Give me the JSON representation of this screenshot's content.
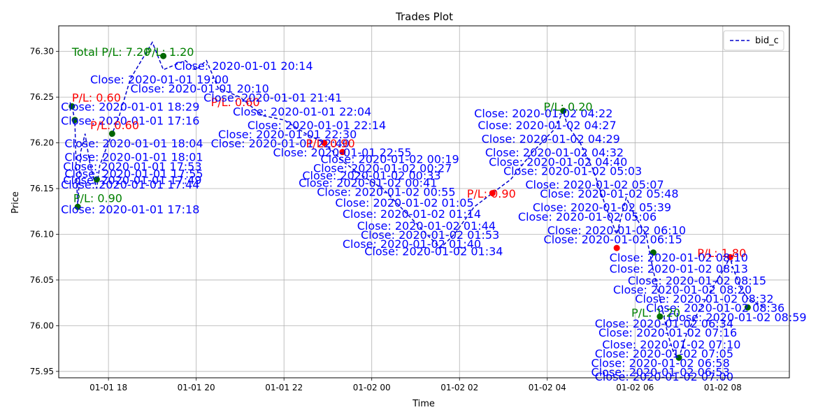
{
  "chart_data": {
    "type": "line",
    "title": "Trades Plot",
    "xlabel": "Time",
    "ylabel": "Price",
    "x_axis": "time",
    "xlim": [
      "2020-01-01 16:52",
      "2020-01-02 09:31"
    ],
    "ylim": [
      75.943,
      76.328
    ],
    "grid": true,
    "legend_position": "top-right",
    "x_ticks": [
      {
        "t": "2020-01-01 18:00",
        "label": "01-01 18"
      },
      {
        "t": "2020-01-01 20:00",
        "label": "01-01 20"
      },
      {
        "t": "2020-01-01 22:00",
        "label": "01-01 22"
      },
      {
        "t": "2020-01-02 00:00",
        "label": "01-02 00"
      },
      {
        "t": "2020-01-02 02:00",
        "label": "01-02 02"
      },
      {
        "t": "2020-01-02 04:00",
        "label": "01-02 04"
      },
      {
        "t": "2020-01-02 06:00",
        "label": "01-02 06"
      },
      {
        "t": "2020-01-02 08:00",
        "label": "01-02 08"
      }
    ],
    "y_ticks": [
      {
        "v": 75.95,
        "label": "75.95"
      },
      {
        "v": 76.0,
        "label": "76.00"
      },
      {
        "v": 76.05,
        "label": "76.05"
      },
      {
        "v": 76.1,
        "label": "76.10"
      },
      {
        "v": 76.15,
        "label": "76.15"
      },
      {
        "v": 76.2,
        "label": "76.20"
      },
      {
        "v": 76.25,
        "label": "76.25"
      },
      {
        "v": 76.3,
        "label": "76.30"
      }
    ],
    "series": [
      {
        "name": "bid_c",
        "style": "dashed",
        "color": "#0000cc",
        "points": [
          [
            "2020-01-01 17:10",
            76.24
          ],
          [
            "2020-01-01 17:14",
            76.225
          ],
          [
            "2020-01-01 17:16",
            76.17
          ],
          [
            "2020-01-01 17:18",
            76.13
          ],
          [
            "2020-01-01 17:22",
            76.19
          ],
          [
            "2020-01-01 17:28",
            76.21
          ],
          [
            "2020-01-01 17:34",
            76.18
          ],
          [
            "2020-01-01 17:40",
            76.16
          ],
          [
            "2020-01-01 17:44",
            76.15
          ],
          [
            "2020-01-01 17:48",
            76.175
          ],
          [
            "2020-01-01 17:55",
            76.19
          ],
          [
            "2020-01-01 18:05",
            76.21
          ],
          [
            "2020-01-01 18:15",
            76.23
          ],
          [
            "2020-01-01 18:30",
            76.27
          ],
          [
            "2020-01-01 18:45",
            76.29
          ],
          [
            "2020-01-01 19:00",
            76.31
          ],
          [
            "2020-01-01 19:15",
            76.28
          ],
          [
            "2020-01-01 19:30",
            76.285
          ],
          [
            "2020-01-01 19:45",
            76.29
          ],
          [
            "2020-01-01 20:00",
            76.28
          ],
          [
            "2020-01-01 20:14",
            76.29
          ],
          [
            "2020-01-01 20:30",
            76.26
          ],
          [
            "2020-01-01 21:00",
            76.25
          ],
          [
            "2020-01-01 21:30",
            76.23
          ],
          [
            "2020-01-01 22:00",
            76.225
          ],
          [
            "2020-01-01 22:30",
            76.21
          ],
          [
            "2020-01-01 22:55",
            76.2
          ],
          [
            "2020-01-01 23:20",
            76.18
          ],
          [
            "2020-01-01 23:45",
            76.165
          ],
          [
            "2020-01-02 00:15",
            76.15
          ],
          [
            "2020-01-02 00:45",
            76.125
          ],
          [
            "2020-01-02 01:15",
            76.1
          ],
          [
            "2020-01-02 01:34",
            76.085
          ],
          [
            "2020-01-02 01:53",
            76.1
          ],
          [
            "2020-01-02 02:20",
            76.13
          ],
          [
            "2020-01-02 02:45",
            76.145
          ],
          [
            "2020-01-02 03:10",
            76.16
          ],
          [
            "2020-01-02 03:40",
            76.19
          ],
          [
            "2020-01-02 04:10",
            76.215
          ],
          [
            "2020-01-02 04:22",
            76.235
          ],
          [
            "2020-01-02 04:27",
            76.22
          ],
          [
            "2020-01-02 04:45",
            76.2
          ],
          [
            "2020-01-02 05:03",
            76.17
          ],
          [
            "2020-01-02 05:20",
            76.13
          ],
          [
            "2020-01-02 05:35",
            76.1
          ],
          [
            "2020-01-02 05:48",
            76.14
          ],
          [
            "2020-01-02 06:00",
            76.12
          ],
          [
            "2020-01-02 06:15",
            76.1
          ],
          [
            "2020-01-02 06:25",
            76.06
          ],
          [
            "2020-01-02 06:34",
            76.03
          ],
          [
            "2020-01-02 06:45",
            75.99
          ],
          [
            "2020-01-02 06:53",
            75.97
          ],
          [
            "2020-01-02 07:00",
            75.965
          ],
          [
            "2020-01-02 07:10",
            75.99
          ],
          [
            "2020-01-02 07:16",
            76.0
          ],
          [
            "2020-01-02 07:30",
            76.02
          ],
          [
            "2020-01-02 07:45",
            76.04
          ],
          [
            "2020-01-02 08:00",
            76.06
          ],
          [
            "2020-01-02 08:10",
            76.075
          ],
          [
            "2020-01-02 08:13",
            76.065
          ],
          [
            "2020-01-02 08:25",
            76.04
          ],
          [
            "2020-01-02 08:34",
            76.03
          ],
          [
            "2020-01-02 08:45",
            76.025
          ],
          [
            "2020-01-02 08:59",
            76.02
          ]
        ]
      }
    ],
    "trade_markers": [
      {
        "t": "2020-01-01 17:10",
        "v": 76.24,
        "color": "#006400"
      },
      {
        "t": "2020-01-01 17:14",
        "v": 76.225,
        "color": "#006400"
      },
      {
        "t": "2020-01-01 17:18",
        "v": 76.13,
        "color": "#006400"
      },
      {
        "t": "2020-01-01 17:44",
        "v": 76.16,
        "color": "#006400"
      },
      {
        "t": "2020-01-01 18:05",
        "v": 76.21,
        "color": "#006400"
      },
      {
        "t": "2020-01-01 19:15",
        "v": 76.295,
        "color": "#006400"
      },
      {
        "t": "2020-01-01 22:55",
        "v": 76.2,
        "color": "#ff0000"
      },
      {
        "t": "2020-01-01 23:20",
        "v": 76.19,
        "color": "#ff0000"
      },
      {
        "t": "2020-01-02 02:45",
        "v": 76.145,
        "color": "#ff0000"
      },
      {
        "t": "2020-01-02 04:22",
        "v": 76.235,
        "color": "#006400"
      },
      {
        "t": "2020-01-02 05:35",
        "v": 76.085,
        "color": "#ff0000"
      },
      {
        "t": "2020-01-02 06:25",
        "v": 76.08,
        "color": "#006400"
      },
      {
        "t": "2020-01-02 06:34",
        "v": 76.01,
        "color": "#006400"
      },
      {
        "t": "2020-01-02 07:00",
        "v": 75.965,
        "color": "#006400"
      },
      {
        "t": "2020-01-02 08:10",
        "v": 76.075,
        "color": "#ff0000"
      },
      {
        "t": "2020-01-02 08:34",
        "v": 76.02,
        "color": "#006400"
      }
    ],
    "annotations": [
      {
        "text": "Total P/L: 7.20",
        "t": "2020-01-01 17:10",
        "v": 76.295,
        "color": "#008000"
      },
      {
        "text": "Close: 2020-01-01 20:14",
        "t": "2020-01-01 19:30",
        "v": 76.28,
        "color": "#0000ff"
      },
      {
        "text": "Close: 2020-01-01 19:00",
        "t": "2020-01-01 17:35",
        "v": 76.265,
        "color": "#0000ff"
      },
      {
        "text": "Close: 2020-01-01 20:10",
        "t": "2020-01-01 18:30",
        "v": 76.255,
        "color": "#0000ff"
      },
      {
        "text": "P/L: 1.20",
        "t": "2020-01-01 18:50",
        "v": 76.295,
        "color": "#008000"
      },
      {
        "text": "P/L: 0.60",
        "t": "2020-01-01 20:20",
        "v": 76.24,
        "color": "#ff0000"
      },
      {
        "text": "Close: 2020-01-01 21:41",
        "t": "2020-01-01 20:10",
        "v": 76.245,
        "color": "#0000ff"
      },
      {
        "text": "Close: 2020-01-01 22:04",
        "t": "2020-01-01 20:50",
        "v": 76.23,
        "color": "#0000ff"
      },
      {
        "text": "Close: 2020-01-01 22:14",
        "t": "2020-01-01 21:10",
        "v": 76.215,
        "color": "#0000ff"
      },
      {
        "text": "Close: 2020-01-01 22:30",
        "t": "2020-01-01 20:30",
        "v": 76.205,
        "color": "#0000ff"
      },
      {
        "text": "Close: 2020-01-01 22:40",
        "t": "2020-01-01 20:20",
        "v": 76.195,
        "color": "#0000ff"
      },
      {
        "text": "P/L: 0.60",
        "t": "2020-01-01 17:10",
        "v": 76.245,
        "color": "#ff0000"
      },
      {
        "text": "Close: 2020-01-01 17:16",
        "t": "2020-01-01 16:55",
        "v": 76.22,
        "color": "#0000ff"
      },
      {
        "text": "Close: 2020-01-01 18:29",
        "t": "2020-01-01 16:55",
        "v": 76.235,
        "color": "#0000ff"
      },
      {
        "text": "P/L: 0.60",
        "t": "2020-01-01 17:35",
        "v": 76.215,
        "color": "#ff0000"
      },
      {
        "text": "Close: 2020-01-01 18:04",
        "t": "2020-01-01 17:00",
        "v": 76.195,
        "color": "#0000ff"
      },
      {
        "text": "Close: 2020-01-01 18:01",
        "t": "2020-01-01 17:00",
        "v": 76.18,
        "color": "#0000ff"
      },
      {
        "text": "Close: 2020-01-01 17:53",
        "t": "2020-01-01 16:58",
        "v": 76.17,
        "color": "#0000ff"
      },
      {
        "text": "Close: 2020-01-01 17:55",
        "t": "2020-01-01 17:00",
        "v": 76.162,
        "color": "#0000ff"
      },
      {
        "text": "Close: 2020-01-01 17:49",
        "t": "2020-01-01 16:58",
        "v": 76.155,
        "color": "#0000ff"
      },
      {
        "text": "Close: 2020-01-01 17:44",
        "t": "2020-01-01 16:55",
        "v": 76.15,
        "color": "#0000ff"
      },
      {
        "text": "P/L: 0.90",
        "t": "2020-01-01 17:12",
        "v": 76.135,
        "color": "#008000"
      },
      {
        "text": "Close: 2020-01-01 17:18",
        "t": "2020-01-01 16:55",
        "v": 76.123,
        "color": "#0000ff"
      },
      {
        "text": "P/L: 0.90",
        "t": "2020-01-01 22:30",
        "v": 76.195,
        "color": "#ff0000"
      },
      {
        "text": "Close: 2020-01-01 22:55",
        "t": "2020-01-01 21:45",
        "v": 76.185,
        "color": "#0000ff"
      },
      {
        "text": "Close: 2020-01-02 00:19",
        "t": "2020-01-01 22:50",
        "v": 76.178,
        "color": "#0000ff"
      },
      {
        "text": "Close: 2020-01-02 00:27",
        "t": "2020-01-01 22:40",
        "v": 76.168,
        "color": "#0000ff"
      },
      {
        "text": "Close: 2020-01-02 00:33",
        "t": "2020-01-01 22:25",
        "v": 76.16,
        "color": "#0000ff"
      },
      {
        "text": "Close: 2020-01-02 00:41",
        "t": "2020-01-01 22:20",
        "v": 76.152,
        "color": "#0000ff"
      },
      {
        "text": "Close: 2020-01-02 00:55",
        "t": "2020-01-01 22:45",
        "v": 76.142,
        "color": "#0000ff"
      },
      {
        "text": "Close: 2020-01-02 01:05",
        "t": "2020-01-01 23:10",
        "v": 76.13,
        "color": "#0000ff"
      },
      {
        "text": "Close: 2020-01-02 01:14",
        "t": "2020-01-01 23:20",
        "v": 76.118,
        "color": "#0000ff"
      },
      {
        "text": "Close: 2020-01-02 01:44",
        "t": "2020-01-01 23:40",
        "v": 76.105,
        "color": "#0000ff"
      },
      {
        "text": "Close: 2020-01-02 01:53",
        "t": "2020-01-01 23:45",
        "v": 76.095,
        "color": "#0000ff"
      },
      {
        "text": "Close: 2020-01-02 01:40",
        "t": "2020-01-01 23:20",
        "v": 76.085,
        "color": "#0000ff"
      },
      {
        "text": "Close: 2020-01-02 01:34",
        "t": "2020-01-01 23:50",
        "v": 76.077,
        "color": "#0000ff"
      },
      {
        "text": "P/L: 0.90",
        "t": "2020-01-02 02:10",
        "v": 76.14,
        "color": "#ff0000"
      },
      {
        "text": "Close: 2020-01-02 04:22",
        "t": "2020-01-02 02:20",
        "v": 76.228,
        "color": "#0000ff"
      },
      {
        "text": "P/L: 0.20",
        "t": "2020-01-02 03:55",
        "v": 76.235,
        "color": "#008000"
      },
      {
        "text": "Close: 2020-01-02 04:27",
        "t": "2020-01-02 02:25",
        "v": 76.215,
        "color": "#0000ff"
      },
      {
        "text": "Close: 2020-01-02 04:29",
        "t": "2020-01-02 02:30",
        "v": 76.2,
        "color": "#0000ff"
      },
      {
        "text": "Close: 2020-01-02 04:32",
        "t": "2020-01-02 02:35",
        "v": 76.185,
        "color": "#0000ff"
      },
      {
        "text": "Close: 2020-01-02 04:40",
        "t": "2020-01-02 02:40",
        "v": 76.175,
        "color": "#0000ff"
      },
      {
        "text": "Close: 2020-01-02 05:03",
        "t": "2020-01-02 03:00",
        "v": 76.165,
        "color": "#0000ff"
      },
      {
        "text": "Close: 2020-01-02 05:07",
        "t": "2020-01-02 03:30",
        "v": 76.15,
        "color": "#0000ff"
      },
      {
        "text": "Close: 2020-01-02 05:48",
        "t": "2020-01-02 03:50",
        "v": 76.14,
        "color": "#0000ff"
      },
      {
        "text": "Close: 2020-01-02 05:39",
        "t": "2020-01-02 03:40",
        "v": 76.125,
        "color": "#0000ff"
      },
      {
        "text": "Close: 2020-01-02 05:06",
        "t": "2020-01-02 03:20",
        "v": 76.115,
        "color": "#0000ff"
      },
      {
        "text": "Close: 2020-01-02 06:10",
        "t": "2020-01-02 04:00",
        "v": 76.1,
        "color": "#0000ff"
      },
      {
        "text": "Close: 2020-01-02 06:15",
        "t": "2020-01-02 03:55",
        "v": 76.09,
        "color": "#0000ff"
      },
      {
        "text": "P/L: 1.80",
        "t": "2020-01-02 07:25",
        "v": 76.075,
        "color": "#ff0000"
      },
      {
        "text": "Close: 2020-01-02 08:10",
        "t": "2020-01-02 05:25",
        "v": 76.07,
        "color": "#0000ff"
      },
      {
        "text": "Close: 2020-01-02 08:13",
        "t": "2020-01-02 05:25",
        "v": 76.058,
        "color": "#0000ff"
      },
      {
        "text": "Close: 2020-01-02 08:15",
        "t": "2020-01-02 05:50",
        "v": 76.045,
        "color": "#0000ff"
      },
      {
        "text": "Close: 2020-01-02 08:20",
        "t": "2020-01-02 05:30",
        "v": 76.035,
        "color": "#0000ff"
      },
      {
        "text": "Close: 2020-01-02 08:32",
        "t": "2020-01-02 06:00",
        "v": 76.025,
        "color": "#0000ff"
      },
      {
        "text": "Close: 2020-01-02 08:36",
        "t": "2020-01-02 06:15",
        "v": 76.015,
        "color": "#0000ff"
      },
      {
        "text": "Close: 2020-01-02 08:59",
        "t": "2020-01-02 06:45",
        "v": 76.005,
        "color": "#0000ff"
      },
      {
        "text": "P/L: 1.20",
        "t": "2020-01-02 05:55",
        "v": 76.01,
        "color": "#008000"
      },
      {
        "text": "Close: 2020-01-02 06:34",
        "t": "2020-01-02 05:05",
        "v": 75.998,
        "color": "#0000ff"
      },
      {
        "text": "Close: 2020-01-02 07:16",
        "t": "2020-01-02 05:10",
        "v": 75.988,
        "color": "#0000ff"
      },
      {
        "text": "Close: 2020-01-02 07:10",
        "t": "2020-01-02 05:15",
        "v": 75.975,
        "color": "#0000ff"
      },
      {
        "text": "Close: 2020-01-02 07:05",
        "t": "2020-01-02 05:05",
        "v": 75.965,
        "color": "#0000ff"
      },
      {
        "text": "Close: 2020-01-02 06:58",
        "t": "2020-01-02 05:00",
        "v": 75.955,
        "color": "#0000ff"
      },
      {
        "text": "Close: 2020-01-02 06:53",
        "t": "2020-01-02 05:00",
        "v": 75.945,
        "color": "#0000ff"
      },
      {
        "text": "Close: 2020-01-02 07:00",
        "t": "2020-01-02 05:05",
        "v": 75.94,
        "color": "#0000ff"
      }
    ]
  }
}
